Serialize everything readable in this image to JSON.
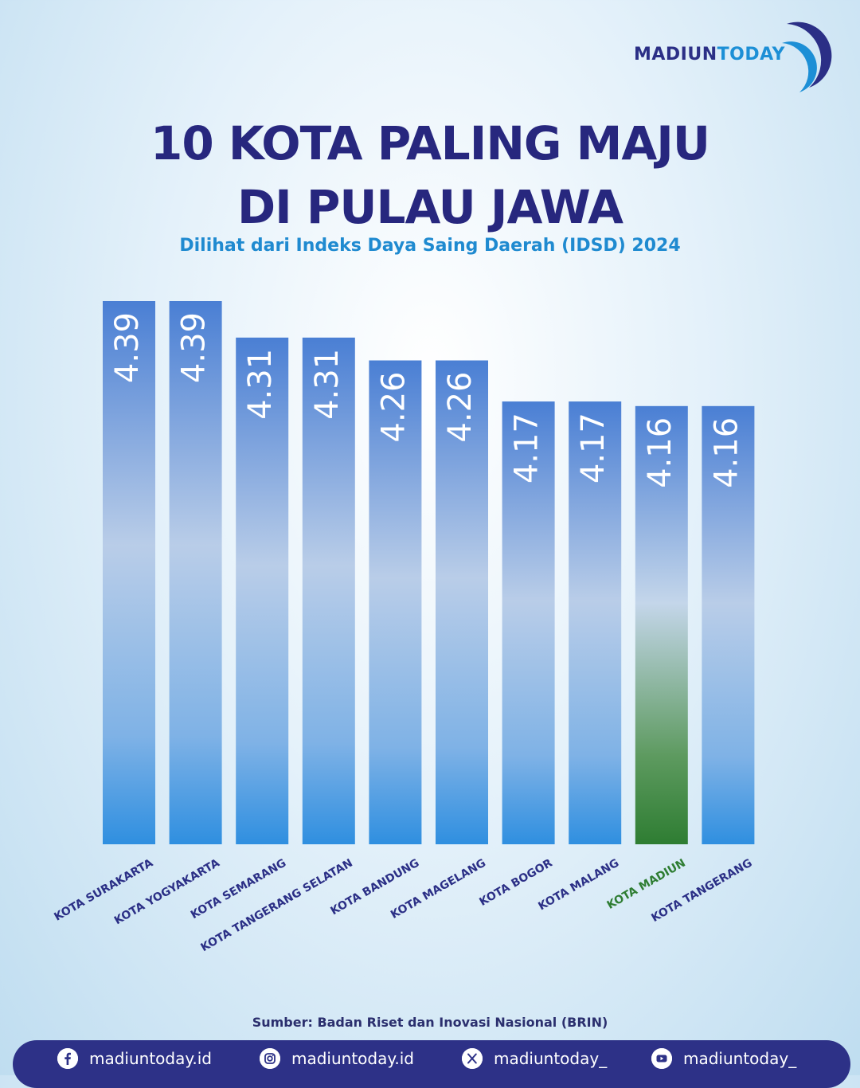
{
  "brand": {
    "part1": "MADIUN",
    "part2": "TODAY"
  },
  "colors": {
    "navy": "#2b2f86",
    "accent": "#1c8fd6",
    "bar": "#3d8fdc",
    "bar_highlight": "#2e7d32",
    "highlight_label": "#2e7d32"
  },
  "chart_data": {
    "type": "bar",
    "title": "10 KOTA PALING MAJU DI PULAU JAWA",
    "title_lines": [
      "10 KOTA PALING MAJU",
      "DI PULAU JAWA"
    ],
    "subtitle": "Dilihat dari Indeks Daya Saing Daerah (IDSD) 2024",
    "categories": [
      "KOTA SURAKARTA",
      "KOTA YOGYAKARTA",
      "KOTA SEMARANG",
      "KOTA TANGERANG SELATAN",
      "KOTA BANDUNG",
      "KOTA MAGELANG",
      "KOTA BOGOR",
      "KOTA MALANG",
      "KOTA MADIUN",
      "KOTA TANGERANG"
    ],
    "values": [
      4.39,
      4.39,
      4.31,
      4.31,
      4.26,
      4.26,
      4.17,
      4.17,
      4.16,
      4.16
    ],
    "value_labels": [
      "4.39",
      "4.39",
      "4.31",
      "4.31",
      "4.26",
      "4.26",
      "4.17",
      "4.17",
      "4.16",
      "4.16"
    ],
    "highlight": "KOTA MADIUN",
    "xlabel": "",
    "ylabel": "",
    "ylim": [
      0,
      4.8
    ],
    "grid": false
  },
  "source": "Sumber: Badan Riset dan Inovasi Nasional (BRIN)",
  "footer": {
    "items": [
      {
        "icon": "facebook-icon",
        "handle": "madiuntoday.id"
      },
      {
        "icon": "instagram-icon",
        "handle": "madiuntoday.id"
      },
      {
        "icon": "x-icon",
        "handle": "madiuntoday_"
      },
      {
        "icon": "youtube-icon",
        "handle": "madiuntoday_"
      }
    ]
  }
}
